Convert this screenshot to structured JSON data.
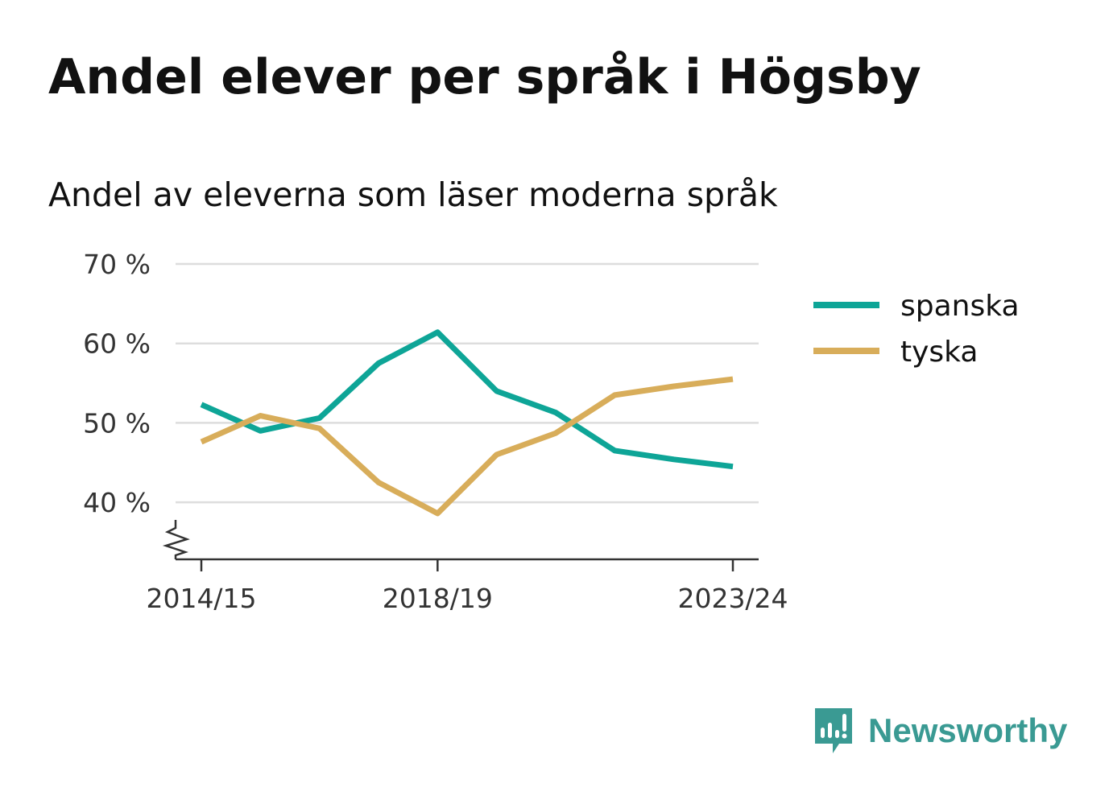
{
  "header": {
    "title": "Andel elever per språk i Högsby",
    "subtitle": "Andel av eleverna som läser moderna språk"
  },
  "brand": {
    "name": "Newsworthy",
    "icon": "bar-chart-speech-bubble-icon",
    "color": "#3a9a93"
  },
  "chart_data": {
    "type": "line",
    "x": [
      "2014/15",
      "2015/16",
      "2016/17",
      "2017/18",
      "2018/19",
      "2019/20",
      "2020/21",
      "2021/22",
      "2022/23",
      "2023/24"
    ],
    "xticks": [
      "2014/15",
      "2018/19",
      "2023/24"
    ],
    "ylim": [
      33,
      70
    ],
    "yticks": [
      40,
      50,
      60,
      70
    ],
    "ytick_labels": [
      "40 %",
      "50 %",
      "60 %",
      "70 %"
    ],
    "axis_break": true,
    "grid": true,
    "legend_position": "right",
    "series": [
      {
        "name": "spanska",
        "color": "#0ea597",
        "values": [
          52.3,
          49.0,
          50.6,
          57.5,
          61.4,
          54.0,
          51.3,
          46.5,
          45.4,
          44.5
        ]
      },
      {
        "name": "tyska",
        "color": "#d8ad5a",
        "values": [
          47.6,
          50.9,
          49.3,
          42.5,
          38.6,
          46.0,
          48.7,
          53.5,
          54.6,
          55.5
        ]
      }
    ]
  }
}
